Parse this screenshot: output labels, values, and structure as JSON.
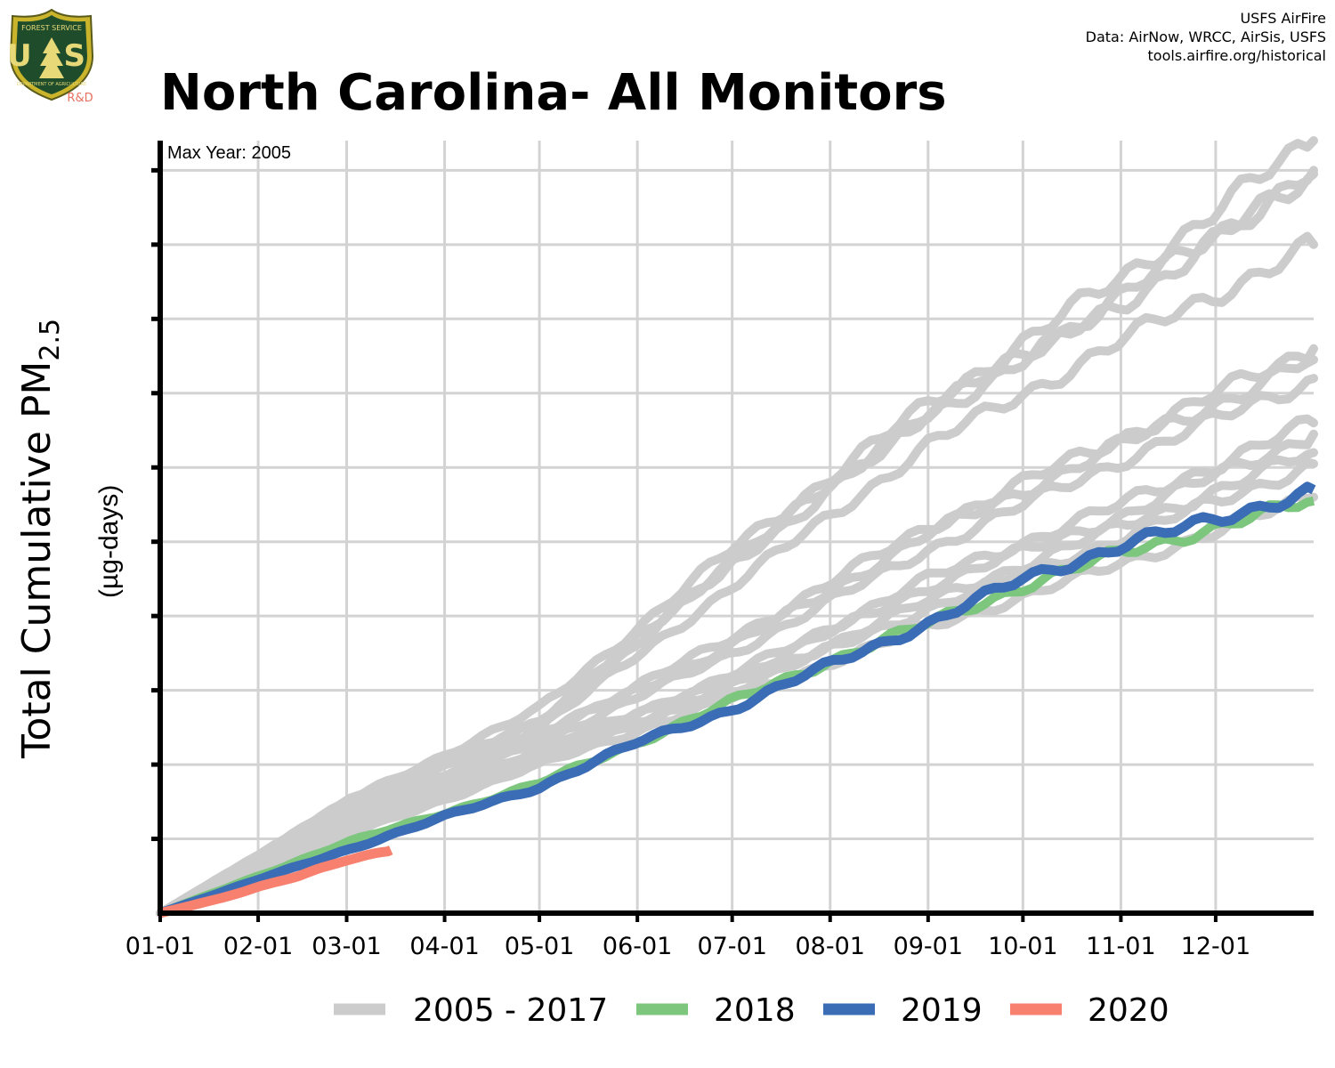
{
  "header": {
    "title": "North Carolina- All Monitors",
    "credits": [
      "USFS AirFire",
      "Data: AirNow, WRCC, AirSis, USFS",
      "tools.airfire.org/historical"
    ],
    "logo": {
      "line1": "FOREST SERVICE",
      "letters": "U S",
      "bottom": "DEPARTMENT OF AGRICULTURE",
      "tag": "R&D"
    }
  },
  "chart_data": {
    "type": "line",
    "annotation": "Max Year: 2005",
    "ylabel_main": "Total Cumulative PM",
    "ylabel_sub": "2.5",
    "ylabel_units": "(µg-days)",
    "x_ticks": [
      "01-01",
      "02-01",
      "03-01",
      "04-01",
      "05-01",
      "06-01",
      "07-01",
      "08-01",
      "09-01",
      "10-01",
      "11-01",
      "12-01"
    ],
    "x_tick_days": [
      1,
      32,
      60,
      91,
      121,
      152,
      182,
      213,
      244,
      274,
      305,
      335
    ],
    "xlim": [
      1,
      366
    ],
    "ylim": [
      0,
      10.4
    ],
    "y_tick_count": 10,
    "y_tick_labels_visible": false,
    "grid": true,
    "legend_placement": "bottom",
    "colors": {
      "historic": "#cccccc",
      "2018": "#7cc67e",
      "2019": "#3a6db5",
      "2020": "#f8806f",
      "grid": "#d3d3d3"
    },
    "legend": [
      "2005 - 2017",
      "2018",
      "2019",
      "2020"
    ],
    "series_2005_2017": [
      {
        "final": 10.4,
        "knots": [
          [
            1,
            0
          ],
          [
            60,
            1.5
          ],
          [
            121,
            2.75
          ],
          [
            182,
            4.9
          ],
          [
            244,
            6.85
          ],
          [
            305,
            8.55
          ],
          [
            366,
            10.4
          ]
        ]
      },
      {
        "final": 10.0,
        "knots": [
          [
            1,
            0
          ],
          [
            60,
            1.45
          ],
          [
            121,
            2.6
          ],
          [
            182,
            4.75
          ],
          [
            244,
            6.75
          ],
          [
            305,
            8.3
          ],
          [
            366,
            10.0
          ]
        ]
      },
      {
        "final": 9.95,
        "knots": [
          [
            1,
            0
          ],
          [
            60,
            1.5
          ],
          [
            121,
            2.55
          ],
          [
            182,
            4.7
          ],
          [
            244,
            6.7
          ],
          [
            305,
            8.2
          ],
          [
            366,
            9.95
          ]
        ]
      },
      {
        "final": 9.0,
        "knots": [
          [
            1,
            0
          ],
          [
            60,
            1.4
          ],
          [
            121,
            2.5
          ],
          [
            182,
            4.4
          ],
          [
            244,
            6.3
          ],
          [
            305,
            7.7
          ],
          [
            366,
            9.0
          ]
        ]
      },
      {
        "final": 7.6,
        "knots": [
          [
            1,
            0
          ],
          [
            60,
            1.3
          ],
          [
            121,
            2.4
          ],
          [
            182,
            3.7
          ],
          [
            244,
            5.2
          ],
          [
            305,
            6.4
          ],
          [
            366,
            7.6
          ]
        ]
      },
      {
        "final": 7.45,
        "knots": [
          [
            1,
            0
          ],
          [
            60,
            1.3
          ],
          [
            121,
            2.4
          ],
          [
            182,
            3.6
          ],
          [
            244,
            5.1
          ],
          [
            305,
            6.3
          ],
          [
            366,
            7.45
          ]
        ]
      },
      {
        "final": 7.2,
        "knots": [
          [
            1,
            0
          ],
          [
            60,
            1.25
          ],
          [
            121,
            2.3
          ],
          [
            182,
            3.5
          ],
          [
            244,
            4.9
          ],
          [
            305,
            6.1
          ],
          [
            366,
            7.2
          ]
        ]
      },
      {
        "final": 6.6,
        "knots": [
          [
            1,
            0
          ],
          [
            60,
            1.2
          ],
          [
            121,
            2.2
          ],
          [
            182,
            3.2
          ],
          [
            244,
            4.5
          ],
          [
            305,
            5.5
          ],
          [
            366,
            6.6
          ]
        ]
      },
      {
        "final": 6.45,
        "knots": [
          [
            1,
            0
          ],
          [
            60,
            1.2
          ],
          [
            121,
            2.15
          ],
          [
            182,
            3.15
          ],
          [
            244,
            4.4
          ],
          [
            305,
            5.35
          ],
          [
            366,
            6.45
          ]
        ]
      },
      {
        "final": 6.2,
        "knots": [
          [
            1,
            0
          ],
          [
            60,
            1.15
          ],
          [
            121,
            2.1
          ],
          [
            182,
            3.05
          ],
          [
            244,
            4.2
          ],
          [
            305,
            5.2
          ],
          [
            366,
            6.2
          ]
        ]
      },
      {
        "final": 6.05,
        "knots": [
          [
            1,
            0
          ],
          [
            60,
            1.1
          ],
          [
            121,
            2.05
          ],
          [
            182,
            3.0
          ],
          [
            244,
            4.1
          ],
          [
            305,
            5.05
          ],
          [
            366,
            6.05
          ]
        ]
      },
      {
        "final": 5.6,
        "knots": [
          [
            1,
            0
          ],
          [
            60,
            1.05
          ],
          [
            121,
            2.0
          ],
          [
            182,
            2.9
          ],
          [
            244,
            3.85
          ],
          [
            305,
            4.7
          ],
          [
            366,
            5.6
          ]
        ]
      }
    ],
    "series_2018": {
      "name": "2018",
      "knots": [
        [
          1,
          0
        ],
        [
          32,
          0.5
        ],
        [
          60,
          0.95
        ],
        [
          91,
          1.35
        ],
        [
          121,
          1.75
        ],
        [
          152,
          2.3
        ],
        [
          182,
          2.85
        ],
        [
          213,
          3.4
        ],
        [
          244,
          3.9
        ],
        [
          274,
          4.4
        ],
        [
          305,
          4.85
        ],
        [
          335,
          5.2
        ],
        [
          366,
          5.55
        ]
      ]
    },
    "series_2019": {
      "name": "2019",
      "knots": [
        [
          1,
          0
        ],
        [
          32,
          0.45
        ],
        [
          60,
          0.85
        ],
        [
          91,
          1.3
        ],
        [
          121,
          1.7
        ],
        [
          152,
          2.3
        ],
        [
          182,
          2.75
        ],
        [
          213,
          3.35
        ],
        [
          244,
          3.9
        ],
        [
          274,
          4.5
        ],
        [
          305,
          4.95
        ],
        [
          335,
          5.3
        ],
        [
          366,
          5.7
        ]
      ]
    },
    "series_2020": {
      "name": "2020",
      "knots": [
        [
          1,
          0
        ],
        [
          20,
          0.2
        ],
        [
          32,
          0.35
        ],
        [
          45,
          0.5
        ],
        [
          60,
          0.72
        ],
        [
          74,
          0.85
        ]
      ]
    }
  }
}
